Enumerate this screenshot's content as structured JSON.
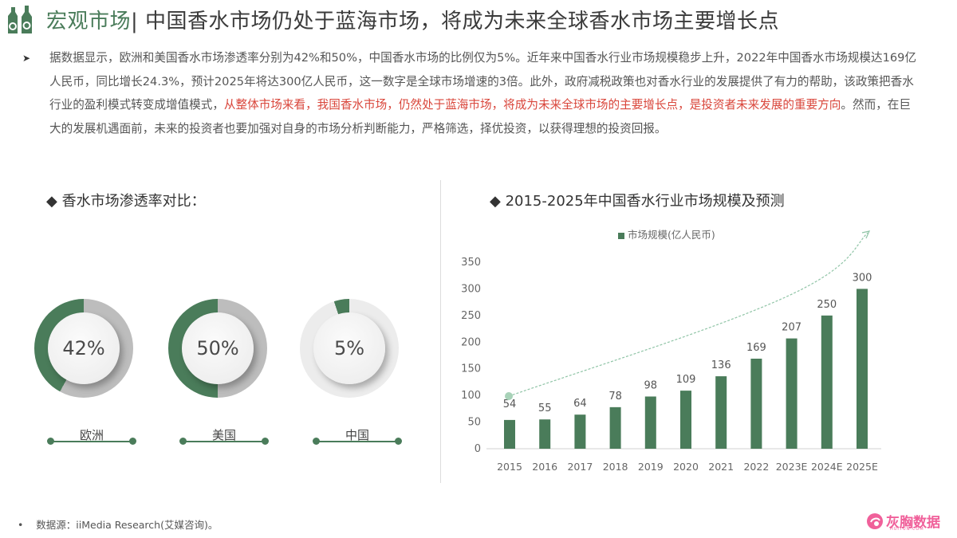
{
  "header": {
    "icon": "bottles-icon",
    "section": "宏观市场",
    "separator": "|",
    "title": "中国香水市场仍处于蓝海市场，将成为未来全球香水市场主要增长点"
  },
  "summary": {
    "bullet": "➤",
    "segments": [
      {
        "text": "据数据显示，欧洲和美国香水市场渗透率分别为42%和50%，中国香水市场的比例仅为5%。近年来中国香水行业市场规模稳步上升，2022年中国香水市场规模达169亿人民币，同比增长24.3%，预计2025年将达300亿人民币，这一数字是全球市场增速的3倍。此外，政府减税政策也对香水行业的发展提供了有力的帮助，该政策把香水行业的盈利模式转变成增值模式，",
        "highlight": false
      },
      {
        "text": "从整体市场来看，我国香水市场，仍然处于蓝海市场，将成为未来全球市场的主要增长点，是投资者未来发展的重要方向",
        "highlight": true
      },
      {
        "text": "。然而，在巨大的发展机遇面前，未来的投资者也要加强对自身的市场分析判断能力，严格筛选，择优投资，以获得理想的投资回报。",
        "highlight": false
      }
    ]
  },
  "penetration": {
    "title": "◆ 香水市场渗透率对比：",
    "items": [
      {
        "region": "欧洲",
        "value": 42,
        "label": "42%"
      },
      {
        "region": "美国",
        "value": 50,
        "label": "50%"
      },
      {
        "region": "中国",
        "value": 5,
        "label": "5%"
      }
    ]
  },
  "market_chart": {
    "title": "◆ 2015-2025年中国香水行业市场规模及预测",
    "legend": "市场规模(亿人民币)"
  },
  "chart_data": [
    {
      "type": "pie",
      "title": "香水市场渗透率对比",
      "categories": [
        "欧洲",
        "美国",
        "中国"
      ],
      "values": [
        42,
        50,
        5
      ],
      "unit": "%",
      "style": "donut"
    },
    {
      "type": "bar",
      "title": "2015-2025年中国香水行业市场规模及预测",
      "categories": [
        "2015",
        "2016",
        "2017",
        "2018",
        "2019",
        "2020",
        "2021",
        "2022",
        "2023E",
        "2024E",
        "2025E"
      ],
      "series": [
        {
          "name": "市场规模(亿人民币)",
          "values": [
            54,
            55,
            64,
            78,
            98,
            109,
            136,
            169,
            207,
            250,
            300
          ]
        }
      ],
      "xlabel": "",
      "ylabel": "",
      "ylim": [
        0,
        350
      ],
      "yticks": [
        0,
        50,
        100,
        150,
        200,
        250,
        300,
        350
      ],
      "grid": false,
      "legend_position": "top",
      "annotations": [
        "dashed upward trend arrow"
      ],
      "bar_color": "#4a7c5a"
    }
  ],
  "footer": {
    "bullet": "•",
    "source": "数据源：iiMedia Research(艾媒咨询)。"
  },
  "brand": {
    "name": "灰胸数据",
    "sub": "HUITUN.COM",
    "color": "#f0609a"
  },
  "colors": {
    "accent": "#4a7c5a",
    "highlight": "#d9453a",
    "track": "#bdbdbd"
  }
}
